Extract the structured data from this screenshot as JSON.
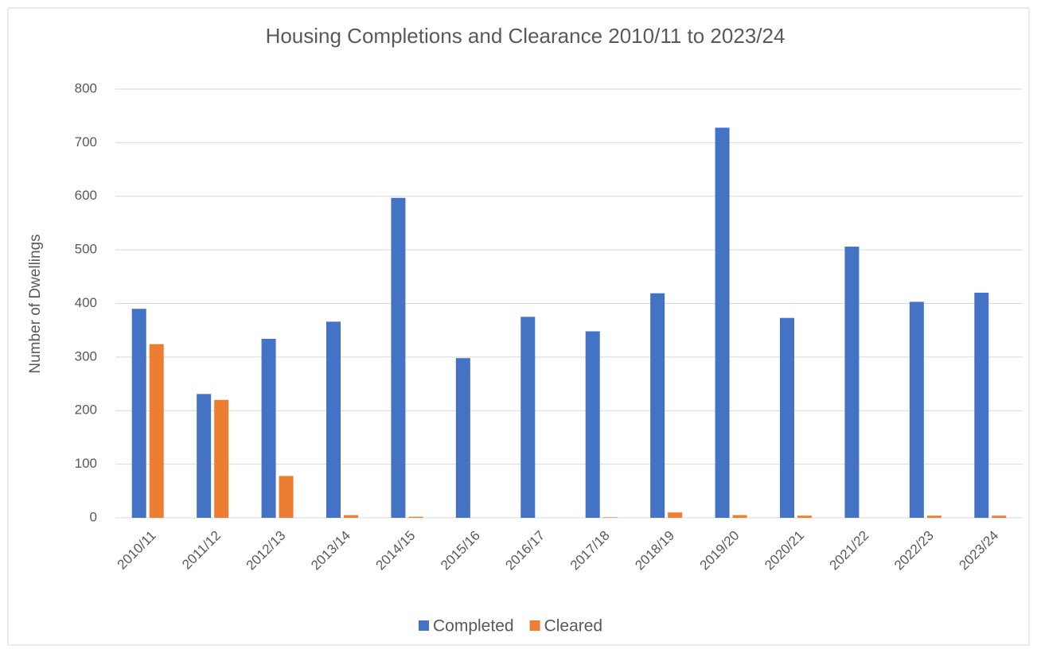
{
  "chart_data": {
    "type": "bar",
    "title": "Housing Completions and Clearance 2010/11 to 2023/24",
    "y_label": "Number of Dwellings",
    "categories": [
      "2010/11",
      "2011/12",
      "2012/13",
      "2013/14",
      "2014/15",
      "2015/16",
      "2016/17",
      "2017/18",
      "2018/19",
      "2019/20",
      "2020/21",
      "2021/22",
      "2022/23",
      "2023/24"
    ],
    "series": [
      {
        "name": "Completed",
        "color": "#4472c4",
        "values": [
          390,
          231,
          334,
          366,
          597,
          298,
          375,
          348,
          419,
          728,
          373,
          506,
          403,
          420
        ]
      },
      {
        "name": "Cleared",
        "color": "#ed7d31",
        "values": [
          324,
          220,
          78,
          5,
          2,
          0,
          0,
          1,
          10,
          5,
          4,
          0,
          4,
          4
        ]
      }
    ],
    "ylim": [
      0,
      800
    ],
    "yticks": [
      0,
      100,
      200,
      300,
      400,
      500,
      600,
      700,
      800
    ],
    "grid": true,
    "legend": "bottom"
  }
}
